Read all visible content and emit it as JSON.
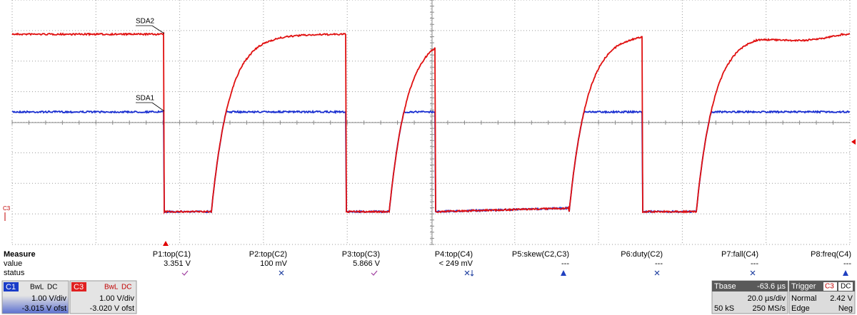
{
  "traces": [
    {
      "label": "SDA2"
    },
    {
      "label": "SDA1"
    }
  ],
  "channel_marker": "C3",
  "measure": {
    "header": "Measure",
    "row_labels": [
      "value",
      "status"
    ],
    "columns": [
      {
        "name": "P1:top(C1)",
        "value": "3.351 V"
      },
      {
        "name": "P2:top(C2)",
        "value": "100 mV"
      },
      {
        "name": "P3:top(C3)",
        "value": "5.866 V"
      },
      {
        "name": "P4:top(C4)",
        "value": "< 249 mV"
      },
      {
        "name": "P5:skew(C2,C3)",
        "value": "---"
      },
      {
        "name": "P6:duty(C2)",
        "value": "---"
      },
      {
        "name": "P7:fall(C4)",
        "value": "---"
      },
      {
        "name": "P8:freq(C4)",
        "value": "---"
      }
    ]
  },
  "channels": [
    {
      "name": "C1",
      "bandwidth": "BwL",
      "coupling": "DC",
      "scale": "1.00 V/div",
      "offset": "-3.015 V ofst"
    },
    {
      "name": "C3",
      "bandwidth": "BwL",
      "coupling": "DC",
      "scale": "1.00 V/div",
      "offset": "-3.020 V ofst"
    }
  ],
  "timebase": {
    "title": "Tbase",
    "delay": "-63.6 µs",
    "scale": "20.0 µs/div",
    "samples": "50 kS",
    "rate": "250 MS/s"
  },
  "trigger": {
    "title": "Trigger",
    "source": "C3",
    "coupling": "DC",
    "mode": "Normal",
    "level": "2.42 V",
    "type": "Edge",
    "slope": "Neg"
  }
}
